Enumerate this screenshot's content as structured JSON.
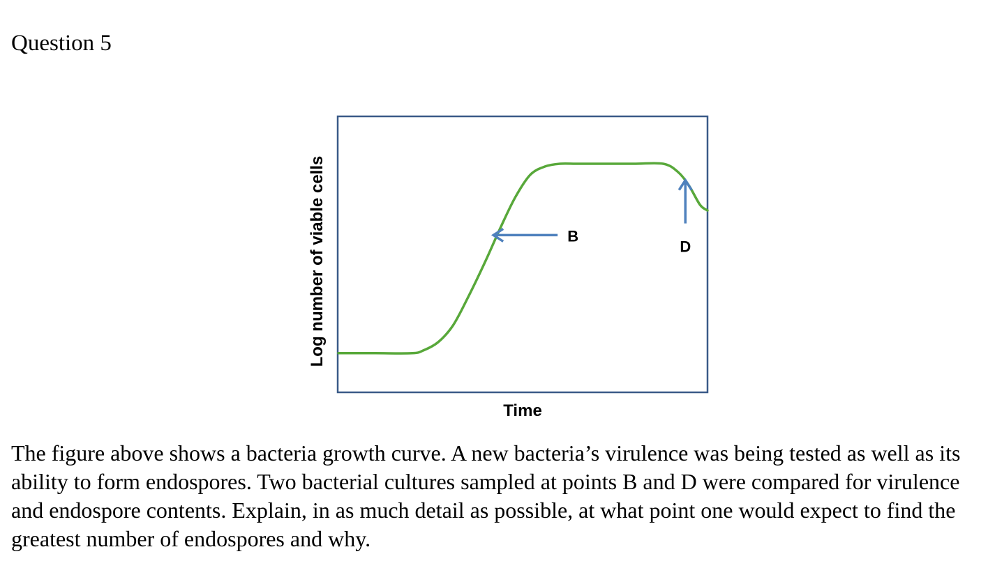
{
  "question": {
    "title": "Question 5",
    "body": "The figure above shows a bacteria growth curve. A new bacteria’s virulence was being tested as well as its ability to form endospores. Two bacterial cultures sampled at points B and D were compared for virulence and endospore contents. Explain, in as much detail as possible, at what point one would expect to find the greatest number of endospores and why."
  },
  "chart_data": {
    "type": "line",
    "title": "",
    "xlabel": "Time",
    "ylabel": "Log number of viable cells",
    "xlim": [
      0,
      100
    ],
    "ylim": [
      0,
      100
    ],
    "grid": false,
    "legend": "none",
    "tick_labels": false,
    "series": [
      {
        "color": "#58a83a",
        "x": [
          0,
          10,
          20,
          23,
          27,
          31,
          35,
          40,
          44,
          48,
          52,
          56,
          60,
          64,
          66,
          70,
          80,
          88,
          92,
          95,
          98,
          100
        ],
        "y": [
          14,
          14,
          14,
          15,
          18,
          24,
          34,
          48,
          60,
          71,
          79,
          82,
          83,
          83,
          83,
          83,
          83,
          83,
          80,
          75,
          68,
          66
        ]
      }
    ],
    "annotations": [
      {
        "label": "B",
        "x": 42,
        "y": 57,
        "arrow_direction": "left",
        "color": "#4f81bd"
      },
      {
        "label": "D",
        "x": 94,
        "y": 77,
        "arrow_direction": "up",
        "color": "#4f81bd"
      }
    ],
    "frame_color": "#3a5a88"
  }
}
